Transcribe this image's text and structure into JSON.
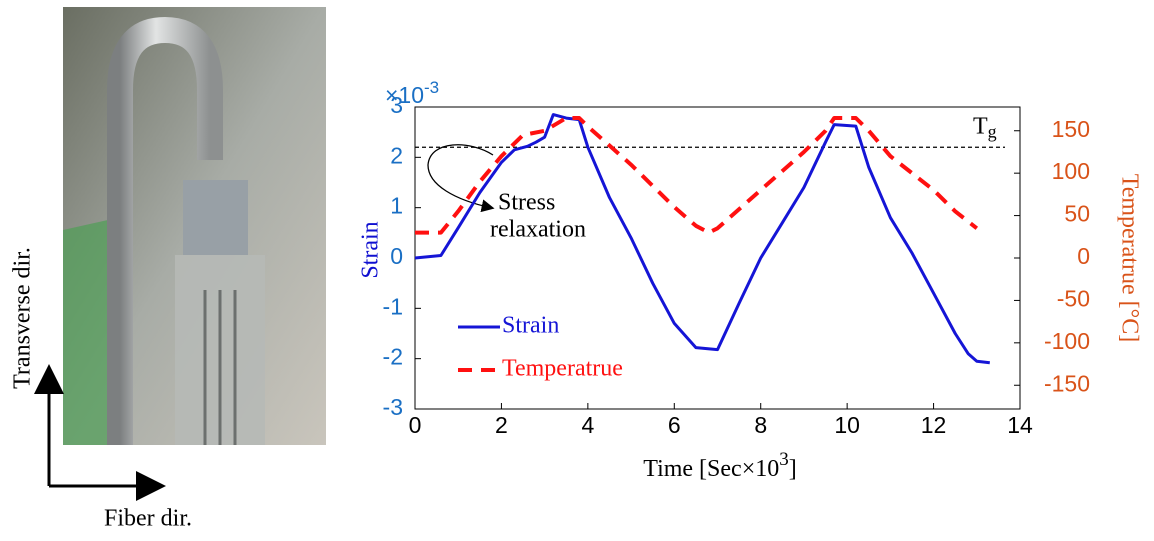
{
  "photo_labels": {
    "vertical": "Transverse dir.",
    "horizontal": "Fiber dir."
  },
  "chart_data": {
    "type": "line",
    "xlabel": {
      "text": "Time [Sec×10",
      "exponent": "3",
      "close": "]"
    },
    "ylabel": "Strain",
    "y2label": "Temperatrue  [°C]",
    "y_multiplier": {
      "base": "×10",
      "exponent": "-3"
    },
    "xlim": [
      0,
      14
    ],
    "xticks": [
      0,
      2,
      4,
      6,
      8,
      10,
      12,
      14
    ],
    "ylim": [
      -3,
      3
    ],
    "yticks": [
      -3,
      -2,
      -1,
      0,
      1,
      2,
      3
    ],
    "y2lim": [
      -178,
      178
    ],
    "y2ticks": [
      -150,
      -100,
      -50,
      0,
      50,
      100,
      150
    ],
    "y_color": "#1a6fc4",
    "y2_color": "#d95319",
    "legend": "lower left",
    "reference_line": {
      "value": 2.2,
      "label": "T",
      "label_sub": "g"
    },
    "annotation": [
      "Stress",
      "relaxation"
    ],
    "series": [
      {
        "name": "Strain",
        "color": "#1515d6",
        "dash": false,
        "x": [
          0,
          0.6,
          1,
          1.5,
          2,
          2.3,
          2.6,
          2.8,
          3.0,
          3.2,
          3.5,
          3.8,
          4.0,
          4.5,
          5,
          5.5,
          6,
          6.5,
          7,
          7.5,
          8,
          8.5,
          9,
          9.5,
          9.7,
          10.2,
          10.5,
          11,
          11.5,
          12,
          12.5,
          12.8,
          13,
          13.3
        ],
        "values": [
          0,
          0.05,
          0.6,
          1.3,
          1.9,
          2.15,
          2.22,
          2.3,
          2.4,
          2.85,
          2.78,
          2.75,
          2.2,
          1.2,
          0.4,
          -0.5,
          -1.3,
          -1.78,
          -1.82,
          -0.9,
          0,
          0.7,
          1.4,
          2.3,
          2.65,
          2.62,
          1.8,
          0.8,
          0.1,
          -0.7,
          -1.5,
          -1.9,
          -2.05,
          -2.08
        ]
      },
      {
        "name": "Temperatrue",
        "color": "#ff1010",
        "dash": true,
        "axis": "y2",
        "x": [
          0,
          0.6,
          1,
          1.5,
          2,
          2.5,
          3.0,
          3.5,
          3.8,
          4,
          5,
          6,
          6.5,
          6.8,
          7,
          8,
          9,
          9.5,
          9.7,
          10.2,
          10.5,
          11,
          12,
          12.5,
          13
        ],
        "values": [
          30,
          30,
          55,
          90,
          120,
          145,
          150,
          165,
          165,
          155,
          110,
          60,
          38,
          30,
          35,
          80,
          125,
          150,
          165,
          165,
          150,
          120,
          80,
          55,
          35
        ]
      }
    ]
  }
}
